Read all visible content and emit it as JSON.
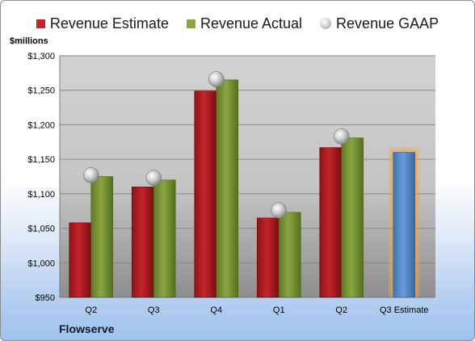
{
  "legend": {
    "estimate": "Revenue Estimate",
    "actual": "Revenue Actual",
    "gaap": "Revenue GAAP"
  },
  "unit_label": "$millions",
  "company": "Flowserve",
  "colors": {
    "estimate": "#c3252b",
    "actual": "#8aa640",
    "gaap": "#c8c8c8",
    "q3_estimate": "#6a9ad8",
    "q3_estimate_glow": "#f5a54a",
    "plot_background": "#c7c7c7"
  },
  "chart_data": {
    "type": "bar",
    "categories": [
      "Q2",
      "Q3",
      "Q4",
      "Q1",
      "Q2",
      "Q3 Estimate"
    ],
    "ylabel": "$millions",
    "ylim": [
      950,
      1300
    ],
    "yticks": [
      "$950",
      "$1,000",
      "$1,050",
      "$1,100",
      "$1,150",
      "$1,200",
      "$1,250",
      "$1,300"
    ],
    "ytick_values": [
      950,
      1000,
      1050,
      1100,
      1150,
      1200,
      1250,
      1300
    ],
    "grid": true,
    "legend_position": "top",
    "series": [
      {
        "name": "Revenue Estimate",
        "values": [
          1058,
          1110,
          1249,
          1065,
          1167,
          null
        ]
      },
      {
        "name": "Revenue Actual",
        "values": [
          1125,
          1120,
          1265,
          1073,
          1181,
          null
        ]
      },
      {
        "name": "Revenue GAAP",
        "type": "scatter",
        "values": [
          1127,
          1123,
          1266,
          1076,
          1183,
          null
        ]
      }
    ],
    "q3_estimate": {
      "category_index": 5,
      "value": 1160
    }
  }
}
